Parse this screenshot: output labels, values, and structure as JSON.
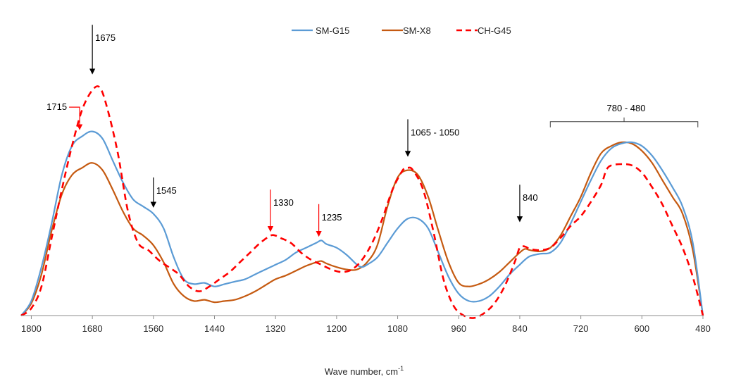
{
  "chart_data": {
    "type": "line",
    "title": "",
    "xlabel": "Wave number, cm",
    "xlabel_superscript": "-1",
    "ylabel": "",
    "xlim": [
      1820,
      480
    ],
    "ylim": [
      0,
      1
    ],
    "x_reversed": true,
    "x_ticks": [
      1800,
      1680,
      1560,
      1440,
      1320,
      1200,
      1080,
      960,
      840,
      720,
      600,
      480
    ],
    "grid": false,
    "legend_position": "top-center",
    "series": [
      {
        "name": "SM-G15",
        "color": "#5B9BD5",
        "style": "solid",
        "points": [
          [
            1820,
            0.0
          ],
          [
            1800,
            0.06
          ],
          [
            1780,
            0.2
          ],
          [
            1760,
            0.38
          ],
          [
            1740,
            0.58
          ],
          [
            1720,
            0.7
          ],
          [
            1700,
            0.74
          ],
          [
            1680,
            0.76
          ],
          [
            1660,
            0.73
          ],
          [
            1640,
            0.64
          ],
          [
            1620,
            0.55
          ],
          [
            1600,
            0.48
          ],
          [
            1580,
            0.45
          ],
          [
            1560,
            0.42
          ],
          [
            1540,
            0.36
          ],
          [
            1520,
            0.24
          ],
          [
            1500,
            0.15
          ],
          [
            1480,
            0.13
          ],
          [
            1460,
            0.135
          ],
          [
            1440,
            0.12
          ],
          [
            1420,
            0.13
          ],
          [
            1400,
            0.14
          ],
          [
            1380,
            0.15
          ],
          [
            1360,
            0.17
          ],
          [
            1340,
            0.19
          ],
          [
            1320,
            0.21
          ],
          [
            1300,
            0.23
          ],
          [
            1280,
            0.26
          ],
          [
            1260,
            0.28
          ],
          [
            1240,
            0.3
          ],
          [
            1230,
            0.31
          ],
          [
            1220,
            0.295
          ],
          [
            1200,
            0.28
          ],
          [
            1180,
            0.25
          ],
          [
            1160,
            0.21
          ],
          [
            1150,
            0.2
          ],
          [
            1140,
            0.21
          ],
          [
            1120,
            0.24
          ],
          [
            1100,
            0.3
          ],
          [
            1080,
            0.36
          ],
          [
            1060,
            0.4
          ],
          [
            1040,
            0.4
          ],
          [
            1020,
            0.36
          ],
          [
            1000,
            0.26
          ],
          [
            980,
            0.16
          ],
          [
            960,
            0.09
          ],
          [
            940,
            0.06
          ],
          [
            920,
            0.06
          ],
          [
            900,
            0.08
          ],
          [
            880,
            0.12
          ],
          [
            860,
            0.17
          ],
          [
            840,
            0.21
          ],
          [
            830,
            0.23
          ],
          [
            820,
            0.245
          ],
          [
            800,
            0.255
          ],
          [
            780,
            0.26
          ],
          [
            760,
            0.3
          ],
          [
            740,
            0.38
          ],
          [
            720,
            0.47
          ],
          [
            700,
            0.56
          ],
          [
            680,
            0.64
          ],
          [
            660,
            0.69
          ],
          [
            640,
            0.71
          ],
          [
            620,
            0.715
          ],
          [
            600,
            0.7
          ],
          [
            580,
            0.66
          ],
          [
            560,
            0.6
          ],
          [
            540,
            0.53
          ],
          [
            520,
            0.45
          ],
          [
            500,
            0.3
          ],
          [
            480,
            0.0
          ]
        ]
      },
      {
        "name": "SM-X8",
        "color": "#C55A11",
        "style": "solid",
        "points": [
          [
            1820,
            0.0
          ],
          [
            1800,
            0.05
          ],
          [
            1780,
            0.17
          ],
          [
            1760,
            0.35
          ],
          [
            1740,
            0.5
          ],
          [
            1720,
            0.58
          ],
          [
            1700,
            0.61
          ],
          [
            1680,
            0.63
          ],
          [
            1660,
            0.6
          ],
          [
            1640,
            0.52
          ],
          [
            1620,
            0.43
          ],
          [
            1600,
            0.36
          ],
          [
            1580,
            0.33
          ],
          [
            1560,
            0.29
          ],
          [
            1540,
            0.22
          ],
          [
            1520,
            0.13
          ],
          [
            1500,
            0.08
          ],
          [
            1480,
            0.06
          ],
          [
            1460,
            0.065
          ],
          [
            1440,
            0.055
          ],
          [
            1420,
            0.06
          ],
          [
            1400,
            0.065
          ],
          [
            1380,
            0.08
          ],
          [
            1360,
            0.1
          ],
          [
            1340,
            0.125
          ],
          [
            1320,
            0.15
          ],
          [
            1300,
            0.165
          ],
          [
            1280,
            0.185
          ],
          [
            1260,
            0.205
          ],
          [
            1240,
            0.22
          ],
          [
            1230,
            0.225
          ],
          [
            1220,
            0.215
          ],
          [
            1200,
            0.2
          ],
          [
            1180,
            0.19
          ],
          [
            1160,
            0.19
          ],
          [
            1140,
            0.22
          ],
          [
            1120,
            0.29
          ],
          [
            1100,
            0.45
          ],
          [
            1080,
            0.57
          ],
          [
            1060,
            0.6
          ],
          [
            1040,
            0.58
          ],
          [
            1020,
            0.49
          ],
          [
            1000,
            0.35
          ],
          [
            980,
            0.22
          ],
          [
            960,
            0.135
          ],
          [
            940,
            0.12
          ],
          [
            920,
            0.13
          ],
          [
            900,
            0.15
          ],
          [
            880,
            0.18
          ],
          [
            860,
            0.22
          ],
          [
            840,
            0.26
          ],
          [
            830,
            0.275
          ],
          [
            820,
            0.27
          ],
          [
            800,
            0.265
          ],
          [
            780,
            0.28
          ],
          [
            760,
            0.33
          ],
          [
            740,
            0.41
          ],
          [
            720,
            0.49
          ],
          [
            700,
            0.59
          ],
          [
            680,
            0.67
          ],
          [
            660,
            0.7
          ],
          [
            640,
            0.715
          ],
          [
            620,
            0.71
          ],
          [
            600,
            0.68
          ],
          [
            580,
            0.63
          ],
          [
            560,
            0.56
          ],
          [
            540,
            0.49
          ],
          [
            520,
            0.42
          ],
          [
            500,
            0.27
          ],
          [
            480,
            0.0
          ]
        ]
      },
      {
        "name": "CH-G45",
        "color": "#FF0000",
        "style": "dashed",
        "points": [
          [
            1820,
            0.0
          ],
          [
            1800,
            0.03
          ],
          [
            1780,
            0.12
          ],
          [
            1760,
            0.32
          ],
          [
            1740,
            0.52
          ],
          [
            1720,
            0.7
          ],
          [
            1700,
            0.85
          ],
          [
            1680,
            0.93
          ],
          [
            1665,
            0.94
          ],
          [
            1650,
            0.85
          ],
          [
            1630,
            0.67
          ],
          [
            1610,
            0.43
          ],
          [
            1590,
            0.3
          ],
          [
            1570,
            0.27
          ],
          [
            1550,
            0.23
          ],
          [
            1530,
            0.2
          ],
          [
            1510,
            0.17
          ],
          [
            1490,
            0.12
          ],
          [
            1470,
            0.1
          ],
          [
            1450,
            0.12
          ],
          [
            1430,
            0.15
          ],
          [
            1410,
            0.18
          ],
          [
            1390,
            0.22
          ],
          [
            1370,
            0.26
          ],
          [
            1350,
            0.3
          ],
          [
            1330,
            0.33
          ],
          [
            1320,
            0.33
          ],
          [
            1310,
            0.32
          ],
          [
            1290,
            0.3
          ],
          [
            1270,
            0.26
          ],
          [
            1250,
            0.23
          ],
          [
            1230,
            0.21
          ],
          [
            1210,
            0.19
          ],
          [
            1190,
            0.18
          ],
          [
            1170,
            0.19
          ],
          [
            1150,
            0.23
          ],
          [
            1130,
            0.3
          ],
          [
            1110,
            0.4
          ],
          [
            1090,
            0.52
          ],
          [
            1070,
            0.6
          ],
          [
            1060,
            0.61
          ],
          [
            1050,
            0.6
          ],
          [
            1030,
            0.52
          ],
          [
            1010,
            0.35
          ],
          [
            990,
            0.15
          ],
          [
            970,
            0.04
          ],
          [
            950,
            0.0
          ],
          [
            930,
            -0.01
          ],
          [
            910,
            0.01
          ],
          [
            890,
            0.05
          ],
          [
            870,
            0.12
          ],
          [
            850,
            0.22
          ],
          [
            840,
            0.28
          ],
          [
            830,
            0.285
          ],
          [
            820,
            0.275
          ],
          [
            800,
            0.27
          ],
          [
            780,
            0.28
          ],
          [
            760,
            0.32
          ],
          [
            740,
            0.37
          ],
          [
            720,
            0.41
          ],
          [
            700,
            0.47
          ],
          [
            680,
            0.54
          ],
          [
            670,
            0.6
          ],
          [
            660,
            0.62
          ],
          [
            640,
            0.625
          ],
          [
            620,
            0.62
          ],
          [
            600,
            0.59
          ],
          [
            580,
            0.53
          ],
          [
            560,
            0.46
          ],
          [
            540,
            0.37
          ],
          [
            520,
            0.28
          ],
          [
            500,
            0.16
          ],
          [
            480,
            0.0
          ]
        ]
      }
    ],
    "annotations": [
      {
        "label": "1675",
        "kind": "down-arrow",
        "x": 1680,
        "y_from": 1.2,
        "y_to": 1.0
      },
      {
        "label": "1715",
        "kind": "elbow-arrow",
        "x": 1705,
        "y_from": 0.86,
        "y_to": 0.77
      },
      {
        "label": "1545",
        "kind": "down-arrow",
        "x": 1560,
        "y_from": 0.57,
        "y_to": 0.45
      },
      {
        "label": "1330",
        "kind": "down-arrow",
        "x": 1330,
        "y_from": 0.52,
        "y_to": 0.35
      },
      {
        "label": "1235",
        "kind": "down-arrow",
        "x": 1235,
        "y_from": 0.46,
        "y_to": 0.33
      },
      {
        "label": "1065 - 1050",
        "kind": "down-arrow",
        "x": 1060,
        "y_from": 0.81,
        "y_to": 0.66
      },
      {
        "label": "840",
        "kind": "down-arrow",
        "x": 840,
        "y_from": 0.54,
        "y_to": 0.39
      },
      {
        "label": "780 - 480",
        "kind": "bracket",
        "x_start": 780,
        "x_end": 490,
        "y": 0.8
      }
    ]
  }
}
